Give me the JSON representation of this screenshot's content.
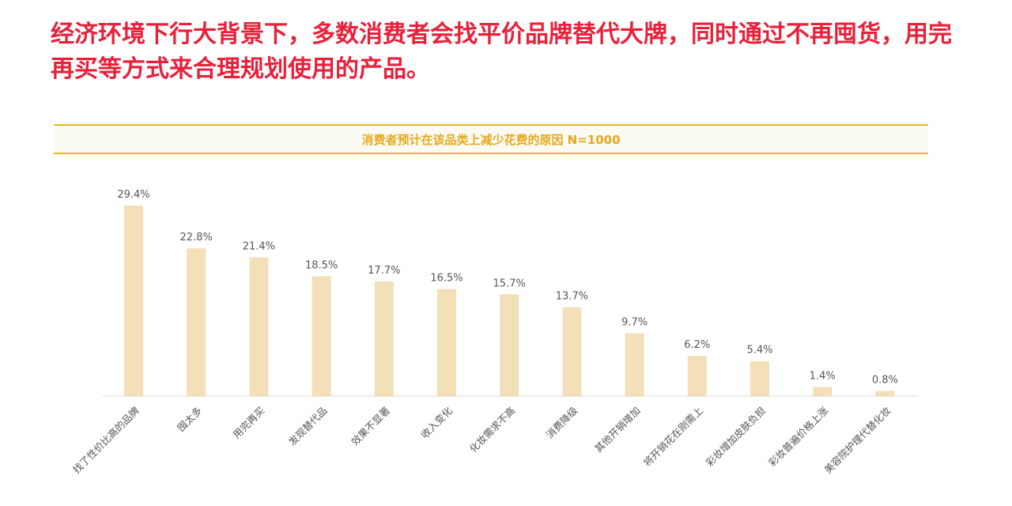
{
  "headline": "经济环境下行大背景下，多数消费者会找平价品牌替代大牌，同时通过不再囤货，用完再买等方式来合理规划使用的产品。",
  "chart_data": {
    "type": "bar",
    "title": "消费者预计在该品类上减少花费的原因 N=1000",
    "categories": [
      "找了性价比高的品牌",
      "囤太多",
      "用完再买",
      "发现替代品",
      "效果不显著",
      "收入变化",
      "化妆需求不高",
      "消费降级",
      "其他开销增加",
      "将开销花在刚需上",
      "彩妆增加皮肤负担",
      "彩妆普遍价格上涨",
      "美容院护理代替化妆"
    ],
    "values": [
      29.4,
      22.8,
      21.4,
      18.5,
      17.7,
      16.5,
      15.7,
      13.7,
      9.7,
      6.2,
      5.4,
      1.4,
      0.8
    ],
    "value_labels": [
      "29.4%",
      "22.8%",
      "21.4%",
      "18.5%",
      "17.7%",
      "16.5%",
      "15.7%",
      "13.7%",
      "9.7%",
      "6.2%",
      "5.4%",
      "1.4%",
      "0.8%"
    ],
    "ylim": [
      0,
      30
    ],
    "grid": false,
    "bar_color": "#f3dfb8",
    "axis_color": "#d9d9d9"
  }
}
